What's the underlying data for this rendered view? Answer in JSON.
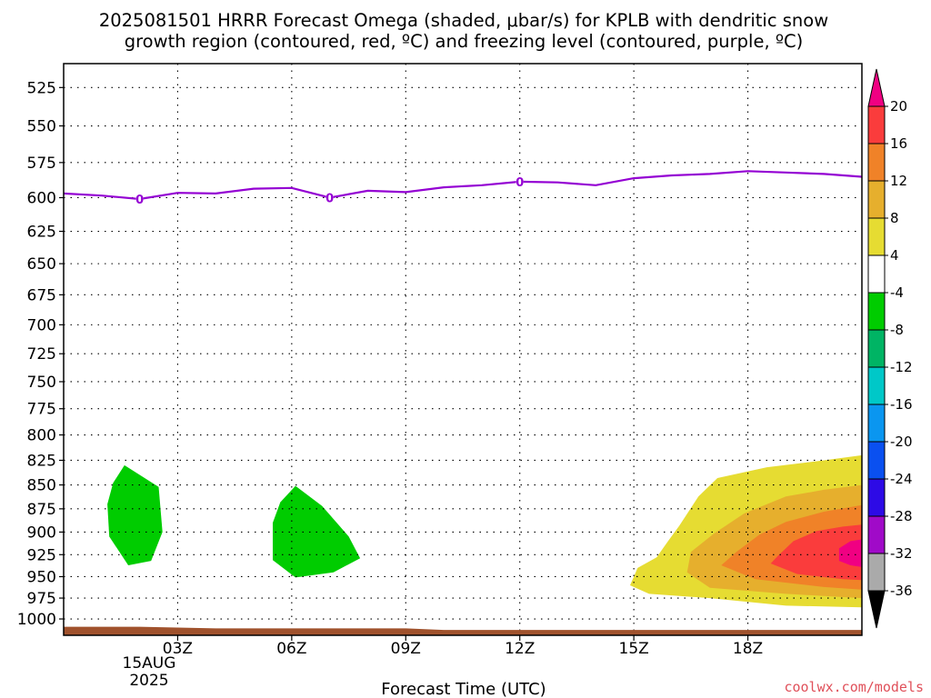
{
  "chart_data": {
    "type": "contour",
    "title_line1": "2025081501 HRRR Forecast Omega (shaded, μbar/s) for KPLB with dendritic snow",
    "title_line2": "growth region (contoured, red, ºC) and freezing level (contoured, purple, ºC)",
    "xlabel": "Forecast Time (UTC)",
    "x_ticks": [
      "03Z",
      "06Z",
      "09Z",
      "12Z",
      "15Z",
      "18Z"
    ],
    "x_tick_hours": [
      3,
      6,
      9,
      12,
      15,
      18
    ],
    "xlim_hours": [
      0,
      21
    ],
    "date_label": [
      "15AUG",
      "2025"
    ],
    "y_ticks": [
      525,
      550,
      575,
      600,
      625,
      650,
      675,
      700,
      725,
      750,
      775,
      800,
      825,
      850,
      875,
      900,
      925,
      950,
      975,
      1000
    ],
    "ylim_mb": [
      1020,
      510
    ],
    "grid": true,
    "freezing_level": {
      "label": "0",
      "color": "#9400d3",
      "hours": [
        0,
        1,
        2,
        3,
        4,
        5,
        6,
        7,
        8,
        9,
        10,
        11,
        12,
        13,
        14,
        15,
        16,
        17,
        18,
        19,
        20,
        21
      ],
      "pressure_mb": [
        597,
        598.5,
        601,
        596.5,
        597,
        593.5,
        593,
        600,
        595,
        596,
        592.5,
        591,
        588.5,
        589,
        591,
        586,
        584,
        583,
        581,
        582,
        583,
        585
      ],
      "label_hours": [
        2,
        7,
        12
      ]
    },
    "omega_regions": [
      {
        "value": -6,
        "color": "#00cc00",
        "points": [
          [
            1.6,
            830
          ],
          [
            2.5,
            852
          ],
          [
            2.6,
            900
          ],
          [
            2.3,
            932
          ],
          [
            1.7,
            937
          ],
          [
            1.2,
            905
          ],
          [
            1.15,
            870
          ],
          [
            1.3,
            848
          ]
        ]
      },
      {
        "value": -6,
        "color": "#00cc00",
        "points": [
          [
            6.1,
            851
          ],
          [
            6.8,
            872
          ],
          [
            7.5,
            905
          ],
          [
            7.8,
            929
          ],
          [
            7.1,
            945
          ],
          [
            6.1,
            951
          ],
          [
            5.5,
            931
          ],
          [
            5.5,
            890
          ],
          [
            5.7,
            868
          ]
        ]
      },
      {
        "value": 4,
        "color": "#e6dc32",
        "points": [
          [
            21,
            820
          ],
          [
            20,
            825
          ],
          [
            18.5,
            832
          ],
          [
            17.2,
            843
          ],
          [
            16.7,
            862
          ],
          [
            16.2,
            893
          ],
          [
            15.9,
            910
          ],
          [
            15.6,
            928
          ],
          [
            15.1,
            940
          ],
          [
            14.9,
            960
          ],
          [
            15.4,
            970
          ],
          [
            17,
            975
          ],
          [
            19,
            984
          ],
          [
            21,
            986
          ]
        ]
      },
      {
        "value": 8,
        "color": "#e6af2d",
        "points": [
          [
            21,
            850
          ],
          [
            20,
            855
          ],
          [
            19,
            862
          ],
          [
            17.9,
            880
          ],
          [
            17.1,
            902
          ],
          [
            16.5,
            922
          ],
          [
            16.4,
            945
          ],
          [
            17,
            963
          ],
          [
            19,
            970
          ],
          [
            21,
            975
          ]
        ]
      },
      {
        "value": 12,
        "color": "#f08228",
        "points": [
          [
            21,
            871
          ],
          [
            20,
            878
          ],
          [
            19,
            889
          ],
          [
            18.3,
            903
          ],
          [
            17.7,
            922
          ],
          [
            17.3,
            937
          ],
          [
            18.2,
            953
          ],
          [
            20,
            962
          ],
          [
            21,
            965
          ]
        ]
      },
      {
        "value": 16,
        "color": "#fa3c3c",
        "points": [
          [
            21,
            892
          ],
          [
            20.5,
            894
          ],
          [
            19.8,
            899
          ],
          [
            19.2,
            910
          ],
          [
            18.8,
            926
          ],
          [
            18.6,
            935
          ],
          [
            19.3,
            947
          ],
          [
            20.5,
            953
          ],
          [
            21,
            954
          ]
        ]
      },
      {
        "value": 20,
        "color": "#f00082",
        "points": [
          [
            21,
            908
          ],
          [
            20.7,
            910
          ],
          [
            20.4,
            918
          ],
          [
            20.4,
            932
          ],
          [
            20.7,
            937
          ],
          [
            21,
            939
          ]
        ]
      }
    ],
    "terrain": {
      "color": "#a0522d",
      "hours": [
        0,
        2,
        3,
        4,
        9,
        10,
        21
      ],
      "pressure_mb": [
        1010,
        1010,
        1011,
        1012,
        1012,
        1014,
        1014
      ]
    },
    "colorbar": {
      "labels": [
        "20",
        "16",
        "12",
        "8",
        "4",
        "-4",
        "-8",
        "-12",
        "-16",
        "-20",
        "-24",
        "-28",
        "-32",
        "-36"
      ],
      "colors": [
        "#f00082",
        "#fa3c3c",
        "#f08228",
        "#e6af2d",
        "#e6dc32",
        "#ffffff",
        "#00cc00",
        "#00b464",
        "#00c8c8",
        "#0a96f0",
        "#0a50f0",
        "#2d0ae6",
        "#a00ac8",
        "#aaaaaa",
        "#000000"
      ]
    },
    "credit": "coolwx.com/models"
  }
}
